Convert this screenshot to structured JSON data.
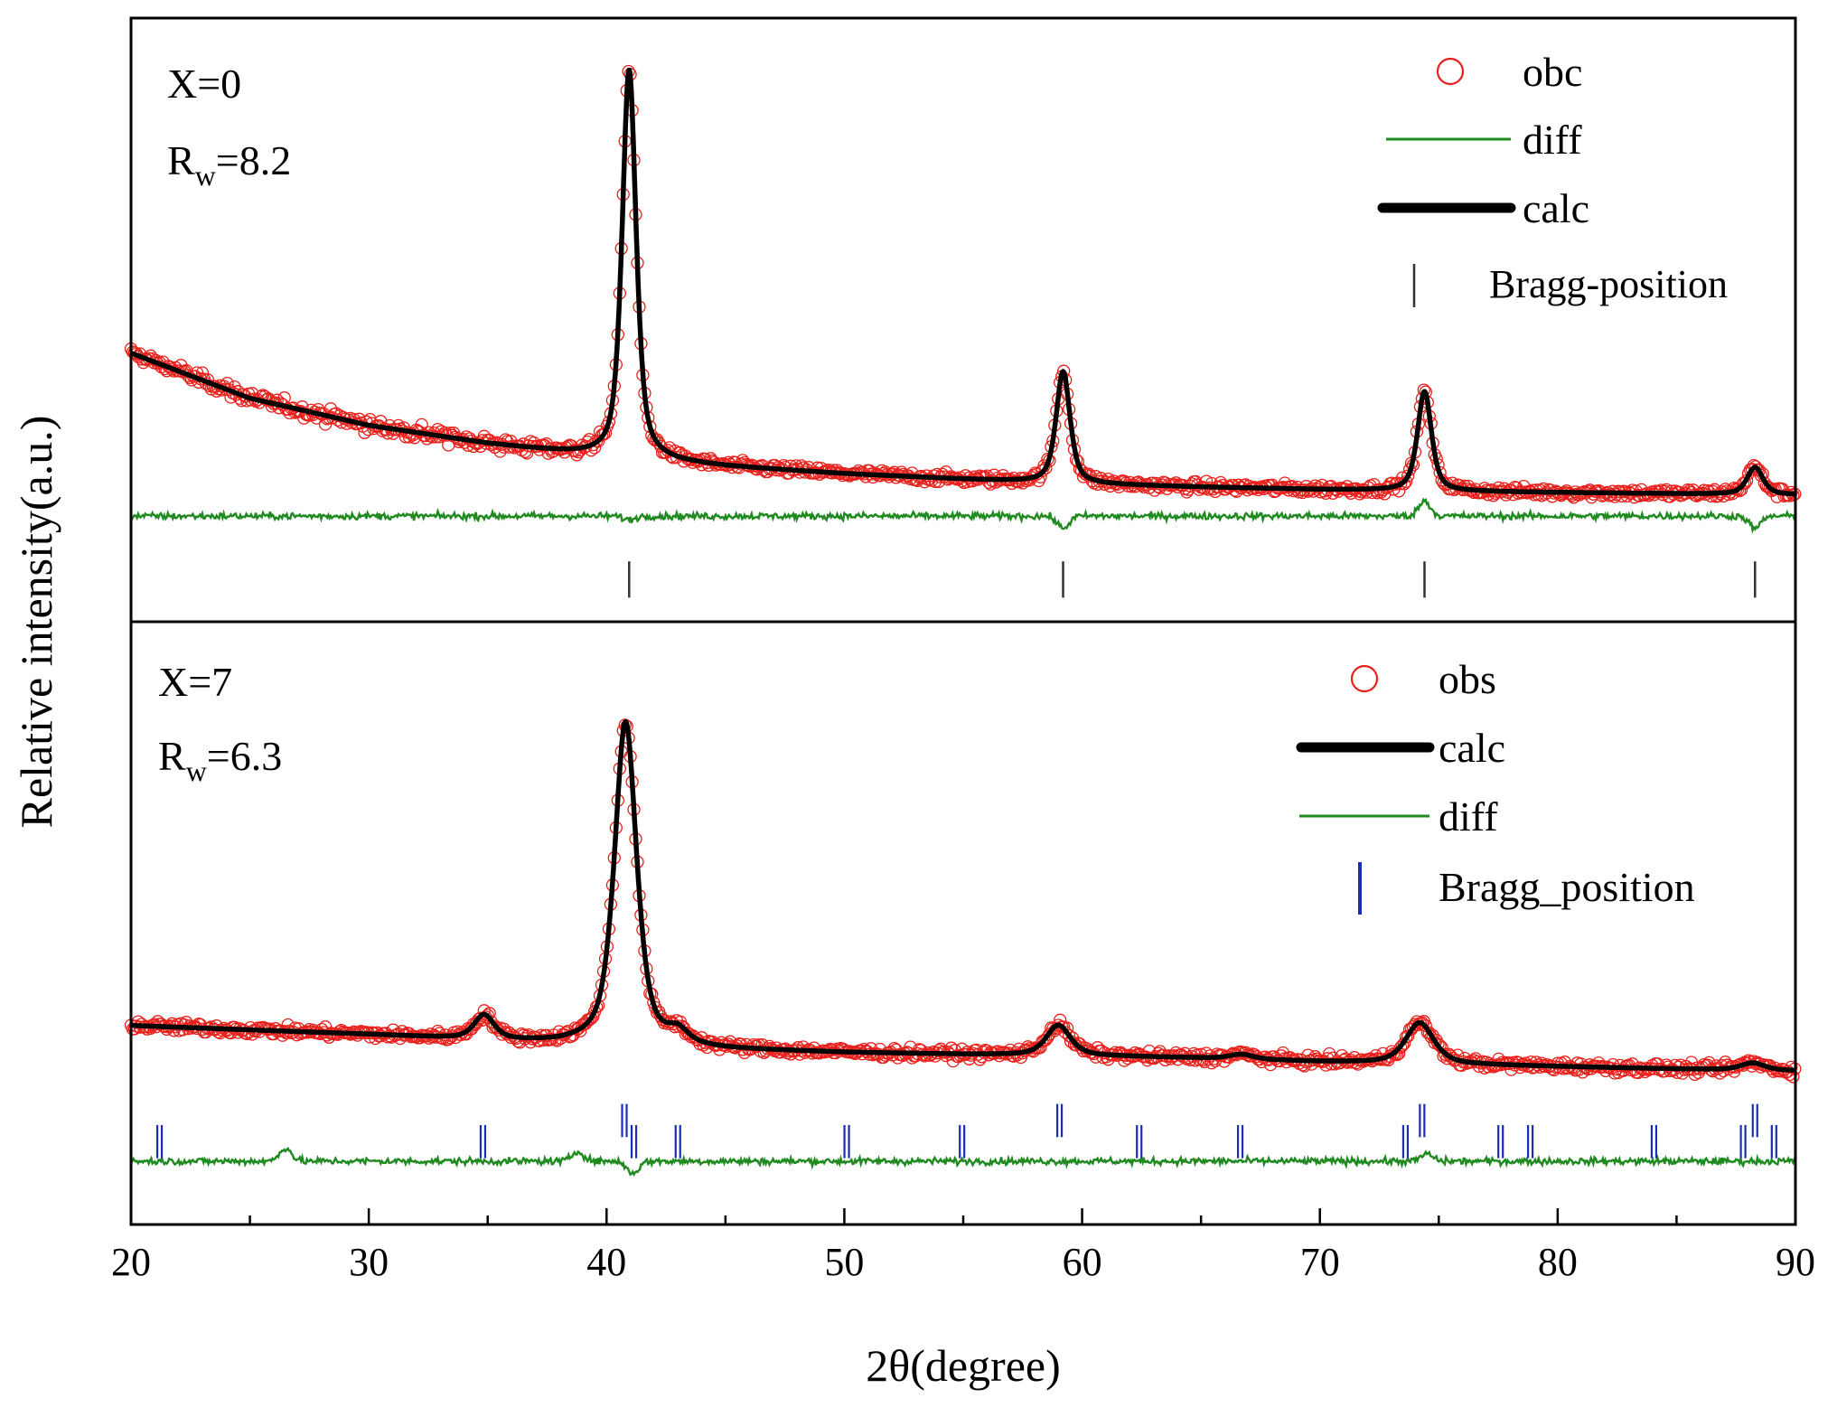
{
  "chart_data": {
    "type": "scatter",
    "xlabel": "2θ(degree)",
    "ylabel": "Relative intensity(a.u.)",
    "xlim": [
      20,
      90
    ],
    "xticks": [
      20,
      30,
      40,
      50,
      60,
      70,
      80,
      90
    ],
    "xtick_labels": [
      "20",
      "30",
      "40",
      "50",
      "60",
      "70",
      "80",
      "90"
    ],
    "ylim": [
      0,
      1
    ],
    "y_ticks_shown": false,
    "colors": {
      "obs": "#e8211c",
      "calc": "#000000",
      "diff": "#1f8a1f",
      "bragg_top": "#333333",
      "bragg_bottom": "#1a2db5"
    },
    "panels": [
      {
        "id": "top",
        "label_line1": "X=0",
        "label_R": "R",
        "label_sub": "w",
        "label_value": "=8.2",
        "legend": {
          "obs": "obc",
          "diff": "diff",
          "calc": "calc",
          "bragg": "Bragg-position"
        },
        "background": [
          [
            20,
            0.445
          ],
          [
            25,
            0.37
          ],
          [
            30,
            0.325
          ],
          [
            35,
            0.295
          ],
          [
            40,
            0.272
          ],
          [
            45,
            0.257
          ],
          [
            50,
            0.245
          ],
          [
            55,
            0.236
          ],
          [
            60,
            0.228
          ],
          [
            65,
            0.223
          ],
          [
            70,
            0.219
          ],
          [
            75,
            0.216
          ],
          [
            80,
            0.214
          ],
          [
            85,
            0.212
          ],
          [
            90,
            0.21
          ]
        ],
        "peaks": [
          {
            "pos": 40.95,
            "height": 0.645,
            "width": 0.35
          },
          {
            "pos": 59.2,
            "height": 0.185,
            "width": 0.35
          },
          {
            "pos": 74.4,
            "height": 0.165,
            "width": 0.35
          },
          {
            "pos": 88.3,
            "height": 0.045,
            "width": 0.4
          }
        ],
        "diff_baseline": 0.175,
        "diff_features": [
          [
            40.95,
            -0.006
          ],
          [
            59.2,
            -0.02
          ],
          [
            74.4,
            0.025
          ],
          [
            88.3,
            -0.02
          ]
        ],
        "bragg": [
          40.95,
          59.2,
          74.4,
          88.3
        ],
        "bragg_y": [
          0.04,
          0.1
        ]
      },
      {
        "id": "bottom",
        "label_line1": "X=7",
        "label_R": "R",
        "label_sub": "w",
        "label_value": "=6.3",
        "legend": {
          "obs": "obs",
          "calc": "calc",
          "diff": "diff",
          "bragg": "Bragg_position"
        },
        "background": [
          [
            20,
            0.33
          ],
          [
            30,
            0.315
          ],
          [
            38,
            0.3
          ],
          [
            40,
            0.3
          ],
          [
            45,
            0.29
          ],
          [
            50,
            0.285
          ],
          [
            55,
            0.282
          ],
          [
            60,
            0.28
          ],
          [
            65,
            0.276
          ],
          [
            70,
            0.27
          ],
          [
            75,
            0.266
          ],
          [
            80,
            0.262
          ],
          [
            85,
            0.258
          ],
          [
            90,
            0.255
          ]
        ],
        "peaks": [
          {
            "pos": 34.85,
            "height": 0.04,
            "width": 0.5
          },
          {
            "pos": 40.8,
            "height": 0.535,
            "width": 0.55
          },
          {
            "pos": 43.0,
            "height": 0.02,
            "width": 0.5
          },
          {
            "pos": 59.0,
            "height": 0.05,
            "width": 0.6
          },
          {
            "pos": 66.7,
            "height": 0.008,
            "width": 0.6
          },
          {
            "pos": 74.2,
            "height": 0.068,
            "width": 0.7
          },
          {
            "pos": 88.2,
            "height": 0.012,
            "width": 0.6
          }
        ],
        "diff_baseline": 0.105,
        "diff_features": [
          [
            26.5,
            0.022
          ],
          [
            38.8,
            0.016
          ],
          [
            41.1,
            -0.02
          ],
          [
            74.5,
            0.012
          ]
        ],
        "bragg_ticks": [
          [
            21.2,
            0
          ],
          [
            34.8,
            0
          ],
          [
            40.75,
            1
          ],
          [
            41.15,
            0
          ],
          [
            43.0,
            0
          ],
          [
            50.1,
            0
          ],
          [
            54.95,
            0
          ],
          [
            59.05,
            1
          ],
          [
            62.4,
            0
          ],
          [
            66.65,
            0
          ],
          [
            73.6,
            0
          ],
          [
            74.3,
            1
          ],
          [
            77.6,
            0
          ],
          [
            78.85,
            0
          ],
          [
            84.05,
            0
          ],
          [
            87.8,
            0
          ],
          [
            88.3,
            1
          ],
          [
            89.1,
            0
          ]
        ],
        "bragg_y_low": [
          0.11,
          0.165
        ],
        "bragg_y_high": [
          0.145,
          0.2
        ]
      }
    ]
  }
}
